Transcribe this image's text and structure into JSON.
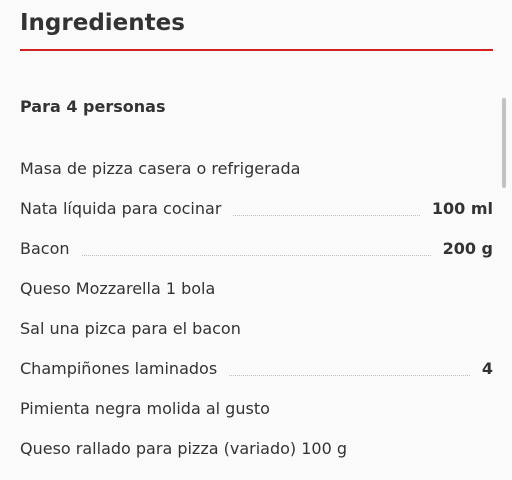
{
  "heading": "Ingredientes",
  "servings": "Para 4 personas",
  "ingredients": [
    {
      "name": "Masa de pizza casera o refrigerada",
      "qty": ""
    },
    {
      "name": "Nata líquida para cocinar",
      "qty": "100 ml"
    },
    {
      "name": "Bacon",
      "qty": "200 g"
    },
    {
      "name": "Queso Mozzarella 1 bola",
      "qty": ""
    },
    {
      "name": "Sal una pizca para el bacon",
      "qty": ""
    },
    {
      "name": "Champiñones laminados",
      "qty": "4"
    },
    {
      "name": "Pimienta negra molida al gusto",
      "qty": ""
    },
    {
      "name": "Queso rallado para pizza (variado) 100 g",
      "qty": ""
    }
  ],
  "colors": {
    "accent": "#d21f1f",
    "text": "#333333",
    "background": "#fafafa"
  }
}
